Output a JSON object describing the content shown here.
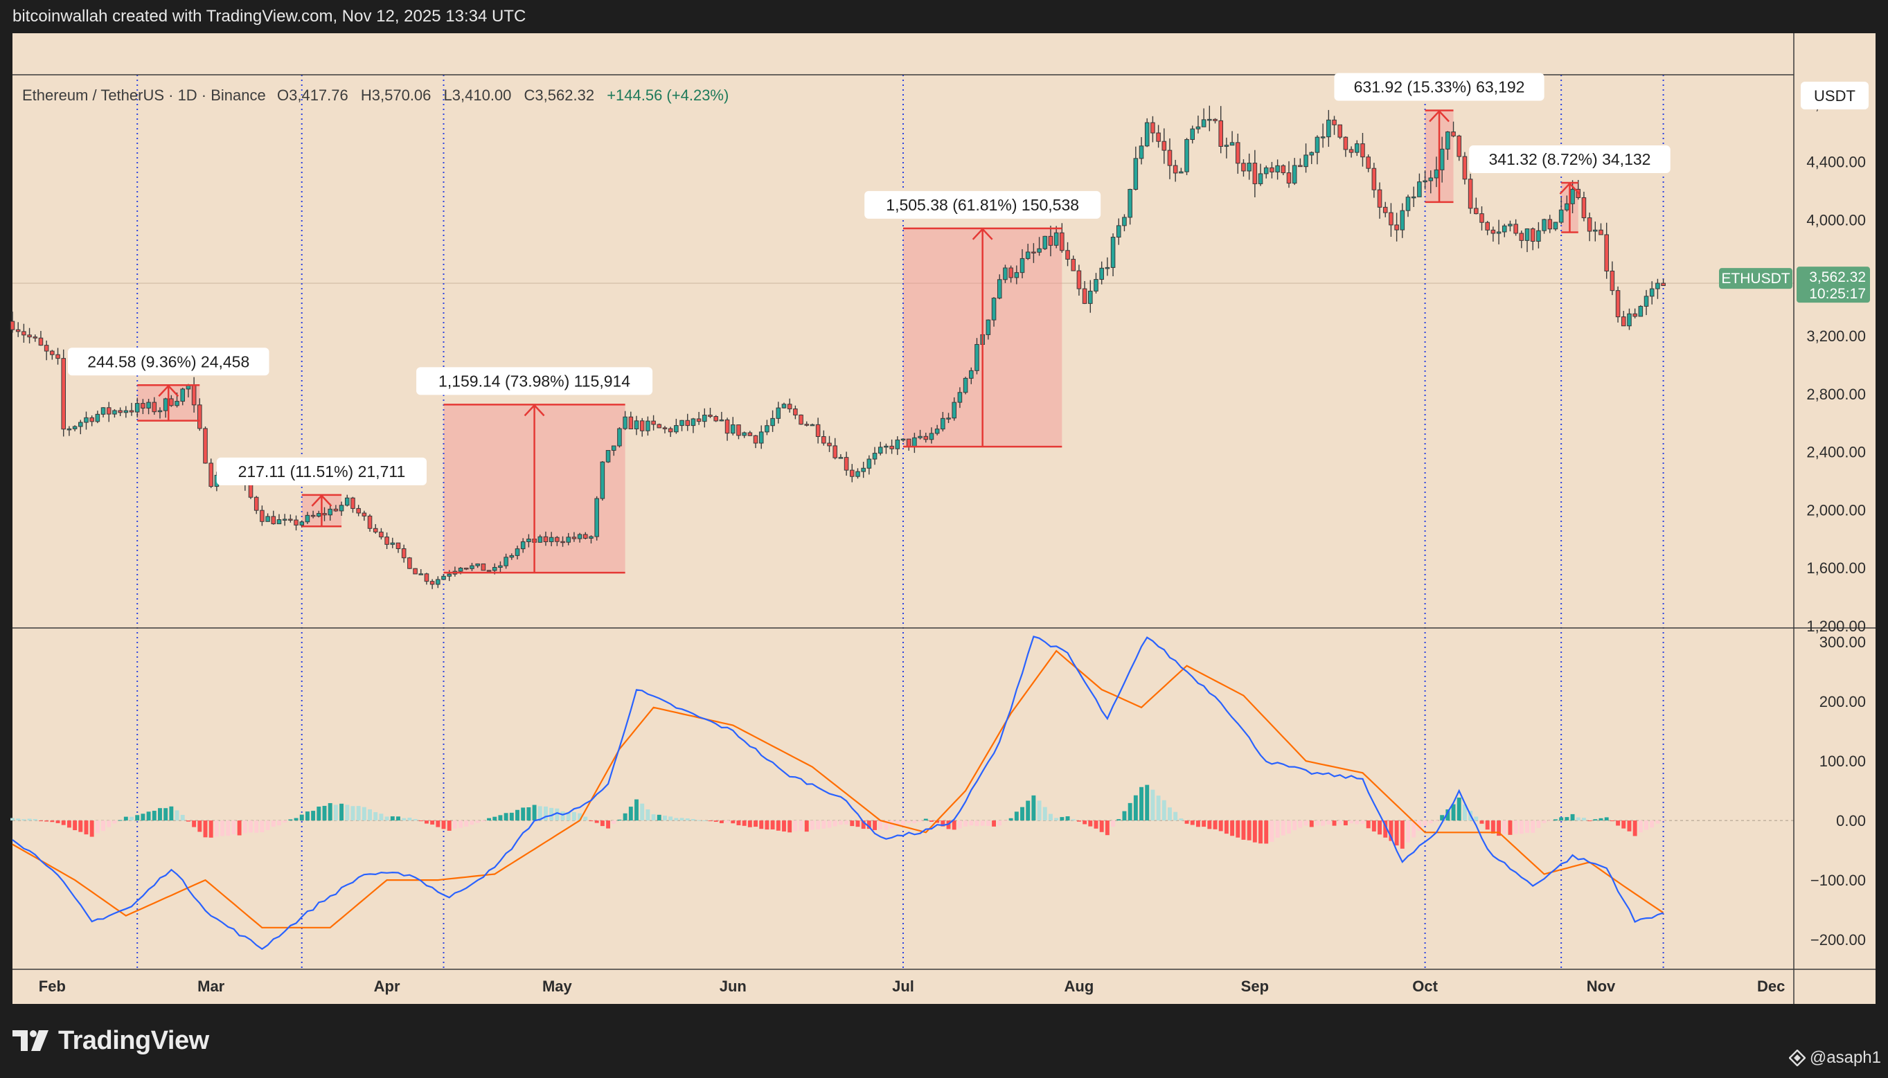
{
  "header": {
    "text": "bitcoinwallah created with TradingView.com, Nov 12, 2025 13:34 UTC"
  },
  "footer": {
    "brand": "TradingView",
    "author": "@asaph1"
  },
  "colors": {
    "background": "#f1dfca",
    "up": "#26a69a",
    "down": "#ef5350",
    "macd_line": "#2962ff",
    "signal_line": "#ff6d00",
    "measure": "#e53935",
    "measure_fill": "rgba(244,143,143,0.42)",
    "vline": "#2940e0",
    "price_badge": "#5fa57c"
  },
  "chart_data": {
    "type": "candlestick",
    "title": "Ethereum / TetherUS · 1D · Binance",
    "ohlc": {
      "o": "O3,417.76",
      "h": "H3,570.06",
      "l": "L3,410.00",
      "c": "C3,562.32",
      "chg": "+144.56 (+4.23%)"
    },
    "currency": "USDT",
    "symbol": "ETHUSDT",
    "last_price": "3,562.32",
    "countdown": "10:25:17",
    "last_price_value": 3562.32,
    "price_axis": {
      "ylim": [
        1200,
        5000
      ],
      "ticks": [
        1200,
        1600,
        2000,
        2400,
        2800,
        3200,
        3600,
        4000,
        4400,
        4800
      ],
      "labels": [
        "1,200.00",
        "1,600.00",
        "2,000.00",
        "2,400.00",
        "2,800.00",
        "3,200.00",
        "3,600.00",
        "4,000.00",
        "4,400.00",
        "4,800.00"
      ]
    },
    "macd_axis": {
      "ylim": [
        -250,
        320
      ],
      "ticks": [
        300,
        200,
        100,
        0,
        -100,
        -200
      ],
      "labels": [
        "300.00",
        "200.00",
        "100.00",
        "0.00",
        "−100.00",
        "−200.00"
      ]
    },
    "x_axis": {
      "start": "2025-01-25",
      "end": "2025-12-05",
      "labels": [
        {
          "date": "2025-02-01",
          "text": "Feb"
        },
        {
          "date": "2025-03-01",
          "text": "Mar"
        },
        {
          "date": "2025-04-01",
          "text": "Apr"
        },
        {
          "date": "2025-05-01",
          "text": "May"
        },
        {
          "date": "2025-06-01",
          "text": "Jun"
        },
        {
          "date": "2025-07-01",
          "text": "Jul"
        },
        {
          "date": "2025-08-01",
          "text": "Aug"
        },
        {
          "date": "2025-09-01",
          "text": "Sep"
        },
        {
          "date": "2025-10-01",
          "text": "Oct"
        },
        {
          "date": "2025-11-01",
          "text": "Nov"
        },
        {
          "date": "2025-12-01",
          "text": "Dec"
        }
      ]
    },
    "price_anchors": [
      [
        "2025-01-25",
        3300
      ],
      [
        "2025-01-29",
        3150
      ],
      [
        "2025-02-02",
        3000
      ],
      [
        "2025-02-03",
        2550
      ],
      [
        "2025-02-08",
        2650
      ],
      [
        "2025-02-14",
        2700
      ],
      [
        "2025-02-20",
        2700
      ],
      [
        "2025-02-25",
        2850
      ],
      [
        "2025-03-01",
        2200
      ],
      [
        "2025-03-05",
        2280
      ],
      [
        "2025-03-10",
        1950
      ],
      [
        "2025-03-15",
        1900
      ],
      [
        "2025-03-20",
        1960
      ],
      [
        "2025-03-25",
        2050
      ],
      [
        "2025-03-31",
        1830
      ],
      [
        "2025-04-06",
        1580
      ],
      [
        "2025-04-09",
        1500
      ],
      [
        "2025-04-14",
        1620
      ],
      [
        "2025-04-20",
        1580
      ],
      [
        "2025-04-25",
        1770
      ],
      [
        "2025-05-01",
        1800
      ],
      [
        "2025-05-07",
        1810
      ],
      [
        "2025-05-09",
        2300
      ],
      [
        "2025-05-13",
        2600
      ],
      [
        "2025-05-20",
        2550
      ],
      [
        "2025-05-27",
        2620
      ],
      [
        "2025-06-05",
        2500
      ],
      [
        "2025-06-10",
        2700
      ],
      [
        "2025-06-16",
        2550
      ],
      [
        "2025-06-22",
        2250
      ],
      [
        "2025-06-29",
        2450
      ],
      [
        "2025-07-05",
        2480
      ],
      [
        "2025-07-10",
        2700
      ],
      [
        "2025-07-14",
        3100
      ],
      [
        "2025-07-18",
        3600
      ],
      [
        "2025-07-22",
        3700
      ],
      [
        "2025-07-28",
        3880
      ],
      [
        "2025-08-02",
        3400
      ],
      [
        "2025-08-08",
        3900
      ],
      [
        "2025-08-13",
        4700
      ],
      [
        "2025-08-18",
        4300
      ],
      [
        "2025-08-22",
        4700
      ],
      [
        "2025-08-27",
        4550
      ],
      [
        "2025-09-01",
        4300
      ],
      [
        "2025-09-08",
        4300
      ],
      [
        "2025-09-13",
        4650
      ],
      [
        "2025-09-19",
        4500
      ],
      [
        "2025-09-25",
        3900
      ],
      [
        "2025-10-01",
        4300
      ],
      [
        "2025-10-06",
        4600
      ],
      [
        "2025-10-10",
        4000
      ],
      [
        "2025-10-15",
        3950
      ],
      [
        "2025-10-21",
        3900
      ],
      [
        "2025-10-27",
        4150
      ],
      [
        "2025-11-01",
        3850
      ],
      [
        "2025-11-04",
        3300
      ],
      [
        "2025-11-08",
        3400
      ],
      [
        "2025-11-12",
        3562
      ]
    ],
    "macd_anchors": [
      [
        "2025-01-25",
        -30
      ],
      [
        "2025-02-01",
        -80
      ],
      [
        "2025-02-08",
        -170
      ],
      [
        "2025-02-15",
        -145
      ],
      [
        "2025-02-22",
        -80
      ],
      [
        "2025-03-01",
        -160
      ],
      [
        "2025-03-10",
        -215
      ],
      [
        "2025-03-20",
        -140
      ],
      [
        "2025-03-28",
        -90
      ],
      [
        "2025-04-05",
        -90
      ],
      [
        "2025-04-12",
        -130
      ],
      [
        "2025-04-20",
        -80
      ],
      [
        "2025-04-27",
        0
      ],
      [
        "2025-05-05",
        20
      ],
      [
        "2025-05-10",
        60
      ],
      [
        "2025-05-15",
        220
      ],
      [
        "2025-05-22",
        190
      ],
      [
        "2025-06-01",
        150
      ],
      [
        "2025-06-10",
        80
      ],
      [
        "2025-06-20",
        40
      ],
      [
        "2025-06-27",
        -30
      ],
      [
        "2025-07-04",
        -20
      ],
      [
        "2025-07-10",
        0
      ],
      [
        "2025-07-18",
        130
      ],
      [
        "2025-07-24",
        310
      ],
      [
        "2025-07-30",
        280
      ],
      [
        "2025-08-06",
        170
      ],
      [
        "2025-08-13",
        310
      ],
      [
        "2025-08-20",
        250
      ],
      [
        "2025-08-26",
        200
      ],
      [
        "2025-09-03",
        100
      ],
      [
        "2025-09-11",
        80
      ],
      [
        "2025-09-20",
        70
      ],
      [
        "2025-09-27",
        -70
      ],
      [
        "2025-10-03",
        -20
      ],
      [
        "2025-10-07",
        50
      ],
      [
        "2025-10-12",
        -50
      ],
      [
        "2025-10-20",
        -110
      ],
      [
        "2025-10-27",
        -60
      ],
      [
        "2025-11-02",
        -80
      ],
      [
        "2025-11-07",
        -170
      ],
      [
        "2025-11-12",
        -155
      ]
    ],
    "signal_anchors": [
      [
        "2025-01-25",
        -40
      ],
      [
        "2025-02-05",
        -100
      ],
      [
        "2025-02-14",
        -160
      ],
      [
        "2025-02-28",
        -100
      ],
      [
        "2025-03-10",
        -180
      ],
      [
        "2025-03-22",
        -180
      ],
      [
        "2025-04-01",
        -100
      ],
      [
        "2025-04-10",
        -100
      ],
      [
        "2025-04-20",
        -90
      ],
      [
        "2025-05-05",
        0
      ],
      [
        "2025-05-12",
        120
      ],
      [
        "2025-05-18",
        190
      ],
      [
        "2025-06-01",
        160
      ],
      [
        "2025-06-15",
        90
      ],
      [
        "2025-06-27",
        0
      ],
      [
        "2025-07-05",
        -20
      ],
      [
        "2025-07-12",
        50
      ],
      [
        "2025-07-20",
        180
      ],
      [
        "2025-07-28",
        285
      ],
      [
        "2025-08-05",
        220
      ],
      [
        "2025-08-12",
        190
      ],
      [
        "2025-08-20",
        260
      ],
      [
        "2025-08-30",
        210
      ],
      [
        "2025-09-10",
        100
      ],
      [
        "2025-09-20",
        80
      ],
      [
        "2025-10-01",
        -20
      ],
      [
        "2025-10-07",
        -20
      ],
      [
        "2025-10-14",
        -20
      ],
      [
        "2025-10-22",
        -90
      ],
      [
        "2025-10-30",
        -70
      ],
      [
        "2025-11-05",
        -110
      ],
      [
        "2025-11-12",
        -155
      ]
    ],
    "measurements": [
      {
        "label": "244.58 (9.36%) 24,458",
        "from": "2025-02-16",
        "to": "2025-02-27",
        "low": 2615,
        "high": 2860
      },
      {
        "label": "217.11 (11.51%) 21,711",
        "from": "2025-03-17",
        "to": "2025-03-24",
        "low": 1886,
        "high": 2103
      },
      {
        "label": "1,159.14 (73.98%) 115,914",
        "from": "2025-04-11",
        "to": "2025-05-13",
        "low": 1567,
        "high": 2726
      },
      {
        "label": "1,505.38 (61.81%) 150,538",
        "from": "2025-07-01",
        "to": "2025-07-29",
        "low": 2436,
        "high": 3941
      },
      {
        "label": "631.92 (15.33%) 63,192",
        "from": "2025-10-01",
        "to": "2025-10-06",
        "low": 4122,
        "high": 4754
      },
      {
        "label": "341.32 (8.72%) 34,132",
        "from": "2025-10-25",
        "to": "2025-10-28",
        "low": 3914,
        "high": 4255
      }
    ],
    "vertical_lines": [
      "2025-02-16",
      "2025-03-17",
      "2025-04-11",
      "2025-07-01",
      "2025-10-01",
      "2025-10-25",
      "2025-11-12"
    ]
  }
}
